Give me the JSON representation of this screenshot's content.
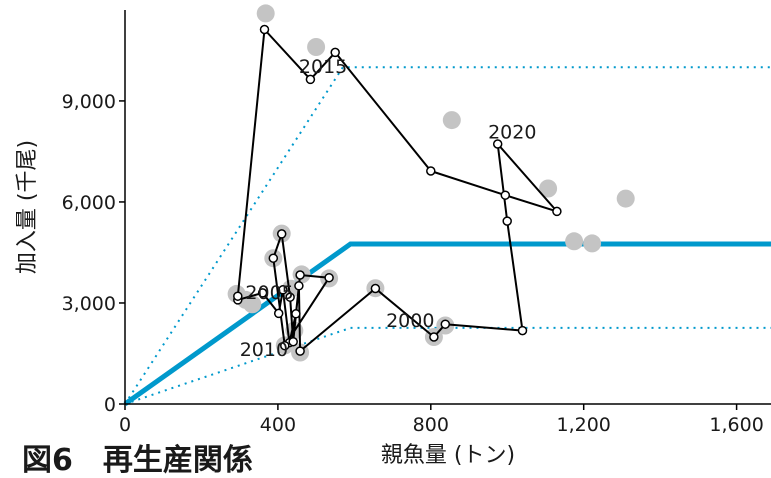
{
  "chart_data": {
    "type": "scatter",
    "caption": "図6　再生産関係",
    "xlabel": "親魚量 (トン)",
    "ylabel": "加入量 (千尾)",
    "xlim": [
      0,
      1690
    ],
    "ylim": [
      0,
      11700
    ],
    "x_ticks": [
      0,
      400,
      800,
      1200,
      1600
    ],
    "x_tick_labels": [
      "0",
      "400",
      "800",
      "1,200",
      "1,600"
    ],
    "y_ticks": [
      0,
      3000,
      6000,
      9000
    ],
    "y_tick_labels": [
      "0",
      "3,000",
      "6,000",
      "9,000"
    ],
    "grid": false,
    "colors": {
      "fit_line": "#0099cc",
      "gray_points": "#c4c4c4",
      "trajectory": "#000000",
      "axis": "#000000"
    },
    "fit_line": {
      "x": [
        0,
        590,
        1690
      ],
      "y": [
        0,
        4750,
        4750
      ]
    },
    "fit_upper": {
      "x": [
        0,
        570,
        1690
      ],
      "y": [
        0,
        10000,
        10000
      ]
    },
    "fit_lower": {
      "x": [
        0,
        590,
        1690
      ],
      "y": [
        0,
        2260,
        2260
      ]
    },
    "gray_points": {
      "x": [
        292,
        316,
        333,
        388,
        410,
        418,
        434,
        443,
        458,
        462,
        534,
        655,
        808,
        838,
        855,
        1107,
        1175,
        1222,
        1310,
        500,
        368
      ],
      "y": [
        3270,
        3090,
        2960,
        4330,
        5060,
        1740,
        3420,
        2180,
        1530,
        3850,
        3730,
        3440,
        1990,
        2330,
        8430,
        6400,
        4830,
        4770,
        6100,
        10600,
        11600
      ]
    },
    "trajectory": {
      "x": [
        295,
        360,
        402,
        413,
        430,
        447,
        458,
        534,
        418,
        388,
        410,
        432,
        440,
        455,
        458,
        655,
        808,
        838,
        1040,
        1000,
        975,
        1130,
        995,
        800,
        550,
        485,
        365,
        295
      ],
      "y": [
        3090,
        3300,
        2690,
        3390,
        1820,
        2680,
        3830,
        3750,
        1730,
        4330,
        5050,
        3170,
        1850,
        3510,
        1570,
        3430,
        1990,
        2370,
        2180,
        5430,
        7720,
        5720,
        6200,
        6920,
        10440,
        9640,
        11120,
        3200
      ]
    },
    "annotations": [
      {
        "text": "2005",
        "x": 315,
        "y": 3120
      },
      {
        "text": "2010",
        "x": 300,
        "y": 1430
      },
      {
        "text": "2000",
        "x": 683,
        "y": 2280
      },
      {
        "text": "2015",
        "x": 455,
        "y": 9830
      },
      {
        "text": "2020",
        "x": 950,
        "y": 7890
      }
    ]
  }
}
